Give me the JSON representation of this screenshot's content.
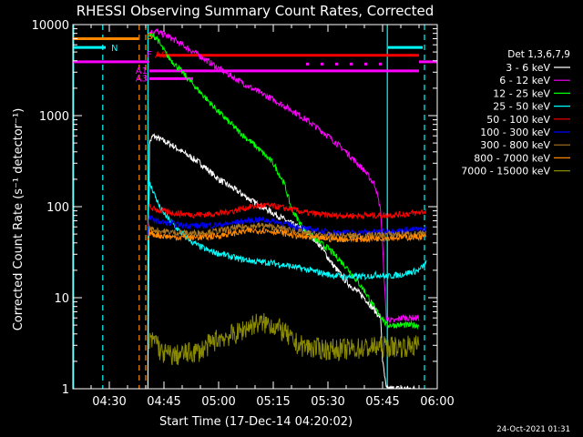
{
  "chart_data": {
    "type": "line",
    "title": "RHESSI Observing Summary Count Rates, Corrected",
    "xlabel": "Start Time (17-Dec-14 04:20:02)",
    "ylabel": "Corrected Count Rate (s⁻¹ detector⁻¹)",
    "x_range_min": [
      20,
      120
    ],
    "x_ticks_min": [
      30,
      45,
      60,
      75,
      90,
      105,
      120
    ],
    "x_tick_labels": [
      "04:30",
      "04:45",
      "05:00",
      "05:15",
      "05:30",
      "05:45",
      "06:00"
    ],
    "y_scale": "log",
    "ylim": [
      1,
      10000
    ],
    "y_tick_values": [
      1,
      10,
      100,
      1000,
      10000
    ],
    "y_tick_labels": [
      "1",
      "10",
      "100",
      "1000",
      "10000"
    ],
    "legend_title": "Det 1,3,6,7,9",
    "legend_position": "right",
    "footer_date": "24-Oct-2021 01:31",
    "series": [
      {
        "name": "3 - 6 keV",
        "color": "#ffffff",
        "x": [
          40.6,
          41,
          42,
          44,
          47,
          50,
          55,
          60,
          65,
          70,
          75,
          80,
          85,
          88,
          89,
          91,
          95,
          100,
          104.5,
          105,
          106,
          110,
          115
        ],
        "y": [
          1,
          500,
          600,
          550,
          480,
          400,
          300,
          200,
          150,
          110,
          85,
          65,
          50,
          37,
          32,
          24,
          15,
          10,
          6,
          2,
          1,
          1,
          1
        ]
      },
      {
        "name": "6 - 12 keV",
        "color": "#ff00ff",
        "x": [
          41,
          43,
          44,
          46,
          50,
          55,
          60,
          65,
          70,
          75,
          80,
          85,
          90,
          95,
          100,
          103,
          104.5,
          106,
          108,
          110,
          115
        ],
        "y": [
          8200,
          8500,
          8000,
          7500,
          6000,
          4500,
          3300,
          2500,
          1900,
          1500,
          1150,
          850,
          600,
          400,
          250,
          170,
          90,
          6,
          5.5,
          6,
          6
        ]
      },
      {
        "name": "12 - 25 keV",
        "color": "#00ff00",
        "x": [
          41,
          43,
          44,
          46,
          50,
          55,
          60,
          65,
          70,
          75,
          78,
          80,
          83,
          86,
          90,
          95,
          100,
          103,
          105,
          106,
          110,
          115
        ],
        "y": [
          7600,
          7200,
          6000,
          4500,
          3000,
          1800,
          1100,
          700,
          470,
          300,
          180,
          95,
          60,
          45,
          35,
          22,
          12,
          7.5,
          6,
          5,
          5,
          5
        ]
      },
      {
        "name": "25 - 50 keV",
        "color": "#00ffff",
        "x": [
          40.6,
          41,
          42,
          44,
          46,
          49,
          53,
          57,
          61,
          65,
          70,
          75,
          80,
          85,
          90,
          95,
          100,
          104,
          106,
          110,
          115,
          117
        ],
        "y": [
          30,
          180,
          150,
          95,
          75,
          55,
          40,
          33,
          30,
          27,
          25,
          24,
          22,
          20,
          18,
          17,
          17,
          18,
          17,
          18,
          20,
          24
        ]
      },
      {
        "name": "50 - 100 keV",
        "color": "#ff0000",
        "x": [
          40.6,
          41,
          42,
          44,
          48,
          52,
          56,
          60,
          64,
          68,
          72,
          76,
          80,
          84,
          88,
          92,
          96,
          100,
          105,
          110,
          115,
          117
        ],
        "y": [
          60,
          100,
          95,
          90,
          85,
          82,
          82,
          84,
          90,
          98,
          104,
          100,
          93,
          86,
          82,
          80,
          80,
          80,
          80,
          82,
          86,
          90
        ]
      },
      {
        "name": "100 - 300 keV",
        "color": "#0000ff",
        "x": [
          40.6,
          41,
          42,
          44,
          48,
          52,
          56,
          60,
          64,
          68,
          72,
          76,
          80,
          84,
          88,
          92,
          96,
          100,
          104,
          108,
          112,
          117
        ],
        "y": [
          50,
          75,
          72,
          68,
          64,
          62,
          62,
          63,
          66,
          70,
          72,
          68,
          62,
          57,
          54,
          52,
          52,
          52,
          53,
          54,
          55,
          57
        ]
      },
      {
        "name": "300 - 800 keV",
        "color": "#aa7722",
        "x": [
          40.6,
          41,
          42,
          44,
          48,
          52,
          56,
          60,
          64,
          68,
          72,
          76,
          80,
          84,
          88,
          92,
          96,
          100,
          104,
          108,
          112,
          117
        ],
        "y": [
          48,
          58,
          56,
          54,
          52,
          51,
          52,
          54,
          58,
          61,
          62,
          59,
          55,
          51,
          49,
          48,
          48,
          48,
          49,
          50,
          50,
          50
        ]
      },
      {
        "name": "800 - 7000 keV",
        "color": "#ff8800",
        "x": [
          40.6,
          41,
          42,
          44,
          48,
          52,
          56,
          60,
          64,
          68,
          72,
          76,
          80,
          84,
          88,
          92,
          96,
          100,
          104,
          108,
          112,
          117
        ],
        "y": [
          42,
          52,
          50,
          48,
          46,
          46,
          46,
          48,
          51,
          54,
          55,
          53,
          49,
          46,
          45,
          44,
          44,
          44,
          45,
          46,
          46,
          47
        ]
      },
      {
        "name": "7000 - 15000 keV",
        "color": "#8a8a00",
        "x": [
          41,
          43,
          44,
          46,
          48,
          50,
          55,
          60,
          65,
          68,
          70,
          74,
          78,
          80,
          82,
          86,
          90,
          95,
          100,
          105,
          110,
          115
        ],
        "y": [
          3.2,
          3.5,
          2.5,
          2.4,
          2.3,
          2.4,
          2.6,
          3.6,
          4,
          4.8,
          5.2,
          5.2,
          4.2,
          3.4,
          3,
          2.8,
          2.7,
          2.7,
          2.8,
          2.9,
          2.9,
          3
        ]
      }
    ],
    "attenuator_states": [
      {
        "label": "A0",
        "color": "#ff0000",
        "x": [
          43,
          115
        ],
        "y": 4600
      },
      {
        "label": "A1",
        "color": "#ff00ff",
        "x": [
          41,
          115
        ],
        "y": 3100
      },
      {
        "label": "A3",
        "color": "#ff00ff",
        "x": [
          41,
          53
        ],
        "y": 2550
      }
    ],
    "status_bars": [
      {
        "label": "N",
        "color": "#00ffff",
        "segments": [
          [
            20,
            29
          ],
          [
            106.5,
            116
          ]
        ],
        "y": 5600
      },
      {
        "label": "",
        "color": "#ff8800",
        "segments": [
          [
            20,
            38
          ]
        ],
        "y": 7000
      },
      {
        "label": "",
        "color": "#ff00ff",
        "segments": [
          [
            20,
            41
          ],
          [
            115,
            120
          ]
        ],
        "y": 3900
      }
    ],
    "glyph_labels": [
      {
        "text": "S",
        "color": "#ff8800",
        "x": 40.6,
        "y": 7600
      },
      {
        "text": "F",
        "color": "#ff00ff",
        "x": 40.6,
        "y": 4800
      }
    ],
    "vlines": [
      {
        "x": 20.2,
        "color": "#00ffff",
        "style": "solid"
      },
      {
        "x": 28.2,
        "color": "#00ffff",
        "style": "dashed"
      },
      {
        "x": 38.2,
        "color": "#ff8800",
        "style": "dashed"
      },
      {
        "x": 40.0,
        "color": "#ff8800",
        "style": "dashed"
      },
      {
        "x": 40.6,
        "color": "#00ffff",
        "style": "solid"
      },
      {
        "x": 106.3,
        "color": "#00ffff",
        "style": "solid"
      },
      {
        "x": 116.5,
        "color": "#00ffff",
        "style": "dashed"
      }
    ]
  }
}
